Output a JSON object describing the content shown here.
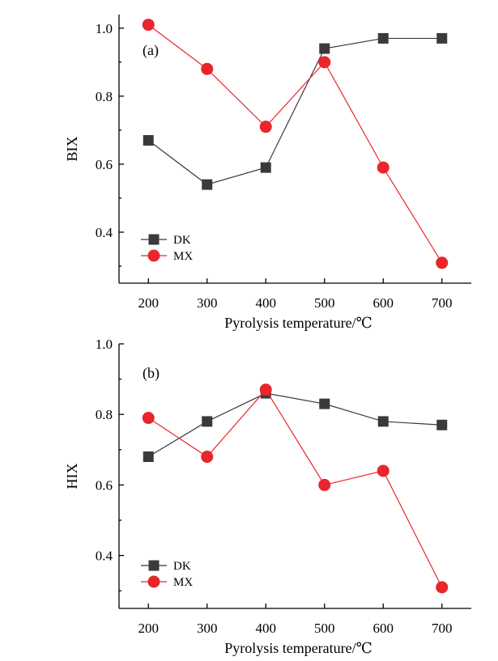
{
  "chart_data": [
    {
      "type": "line",
      "panel_label": "(a)",
      "xlabel": "Pyrolysis temperature/℃",
      "ylabel": "BIX",
      "x": [
        200,
        300,
        400,
        500,
        600,
        700
      ],
      "x_ticks": [
        "200",
        "300",
        "400",
        "500",
        "600",
        "700"
      ],
      "xlim": [
        150,
        750
      ],
      "ylim": [
        0.25,
        1.04
      ],
      "y_ticks": [
        0.4,
        0.6,
        0.8,
        1.0
      ],
      "y_tick_labels": [
        "0.4",
        "0.6",
        "0.8",
        "1.0"
      ],
      "legend_position": "bottom-left",
      "grid": false,
      "series": [
        {
          "name": "DK",
          "marker": "square",
          "color": "#3a3a3a",
          "values": [
            0.67,
            0.54,
            0.59,
            0.94,
            0.97,
            0.97
          ]
        },
        {
          "name": "MX",
          "marker": "circle",
          "color": "#e8262b",
          "values": [
            1.01,
            0.88,
            0.71,
            0.9,
            0.59,
            0.31
          ]
        }
      ]
    },
    {
      "type": "line",
      "panel_label": "(b)",
      "xlabel": "Pyrolysis temperature/℃",
      "ylabel": "HIX",
      "x": [
        200,
        300,
        400,
        500,
        600,
        700
      ],
      "x_ticks": [
        "200",
        "300",
        "400",
        "500",
        "600",
        "700"
      ],
      "xlim": [
        150,
        750
      ],
      "ylim": [
        0.25,
        1.0
      ],
      "y_ticks": [
        0.4,
        0.6,
        0.8,
        1.0
      ],
      "y_tick_labels": [
        "0.4",
        "0.6",
        "0.8",
        "1.0"
      ],
      "legend_position": "bottom-left",
      "grid": false,
      "series": [
        {
          "name": "DK",
          "marker": "square",
          "color": "#3a3a3a",
          "values": [
            0.68,
            0.78,
            0.86,
            0.83,
            0.78,
            0.77
          ]
        },
        {
          "name": "MX",
          "marker": "circle",
          "color": "#e8262b",
          "values": [
            0.79,
            0.68,
            0.87,
            0.6,
            0.64,
            0.31
          ]
        }
      ]
    }
  ]
}
